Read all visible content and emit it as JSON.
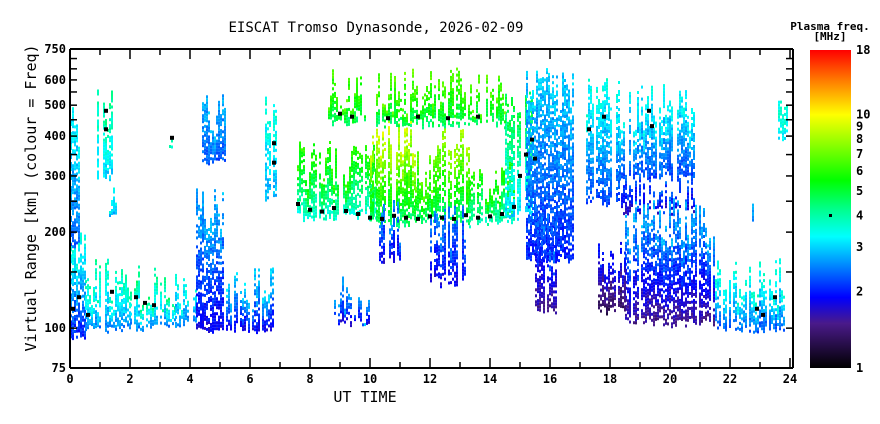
{
  "chart_data": {
    "type": "heatmap",
    "title": "EISCAT Tromso Dynasonde, 2026-02-09",
    "xlabel": "UT TIME",
    "ylabel": "Virtual Range [km] (colour = Freq)",
    "xlim": [
      0,
      24
    ],
    "ylim": [
      75,
      750
    ],
    "yscale": "log",
    "xticks": [
      "0",
      "2",
      "4",
      "6",
      "8",
      "10",
      "12",
      "14",
      "16",
      "18",
      "20",
      "22",
      "24"
    ],
    "yticks": [
      "75",
      "100",
      "200",
      "300",
      "400",
      "500",
      "600",
      "750"
    ],
    "colorbar": {
      "title_line1": "Plasma freq.",
      "title_line2": "[MHz]",
      "range": [
        1,
        18
      ],
      "scale": "log",
      "ticks": [
        "1",
        "2",
        "3",
        "4",
        "5",
        "6",
        "7",
        "8",
        "9",
        "10",
        "18"
      ],
      "stops": [
        {
          "f": 1.0,
          "color": "#000000"
        },
        {
          "f": 1.5,
          "color": "#4a1a8a"
        },
        {
          "f": 1.9,
          "color": "#0000ff"
        },
        {
          "f": 2.5,
          "color": "#0080ff"
        },
        {
          "f": 3.3,
          "color": "#00ffff"
        },
        {
          "f": 4.2,
          "color": "#00ff90"
        },
        {
          "f": 5.5,
          "color": "#00ff00"
        },
        {
          "f": 8.0,
          "color": "#a0ff00"
        },
        {
          "f": 10.0,
          "color": "#ffff00"
        },
        {
          "f": 13.5,
          "color": "#ff8000"
        },
        {
          "f": 18.0,
          "color": "#ff0000"
        }
      ]
    },
    "echo_regions": [
      {
        "t": [
          0,
          0.5
        ],
        "h": [
          95,
          180
        ],
        "f": [
          2,
          3.6
        ]
      },
      {
        "t": [
          0.5,
          2.0
        ],
        "h": [
          100,
          145
        ],
        "f": [
          2.5,
          4
        ]
      },
      {
        "t": [
          2,
          3.5
        ],
        "h": [
          102,
          135
        ],
        "f": [
          2.5,
          4.3
        ]
      },
      {
        "t": [
          3.5,
          4.2
        ],
        "h": [
          104,
          130
        ],
        "f": [
          2.5,
          3.5
        ]
      },
      {
        "t": [
          4.2,
          5.2
        ],
        "h": [
          100,
          245
        ],
        "f": [
          1.8,
          2.8
        ]
      },
      {
        "t": [
          5.2,
          6.8
        ],
        "h": [
          100,
          135
        ],
        "f": [
          1.8,
          3.1
        ]
      },
      {
        "t": [
          0,
          0.4
        ],
        "h": [
          180,
          420
        ],
        "f": [
          2.3,
          3.3
        ]
      },
      {
        "t": [
          0.9,
          1.4
        ],
        "h": [
          300,
          520
        ],
        "f": [
          3,
          4.2
        ]
      },
      {
        "t": [
          4.4,
          5.2
        ],
        "h": [
          330,
          480
        ],
        "f": [
          2.3,
          2.8
        ]
      },
      {
        "t": [
          6.5,
          6.9
        ],
        "h": [
          260,
          500
        ],
        "f": [
          2.8,
          3.6
        ]
      },
      {
        "t": [
          1.3,
          1.6
        ],
        "h": [
          225,
          242
        ],
        "f": [
          2.8,
          3.3
        ]
      },
      {
        "t": [
          3.3,
          3.5
        ],
        "h": [
          370,
          410
        ],
        "f": [
          3.3,
          3.8
        ]
      },
      {
        "t": [
          7.5,
          10.2
        ],
        "h": [
          225,
          330
        ],
        "f": [
          3.6,
          6
        ]
      },
      {
        "t": [
          10.0,
          11.5
        ],
        "h": [
          215,
          420
        ],
        "f": [
          4.5,
          9
        ]
      },
      {
        "t": [
          11.5,
          12.4
        ],
        "h": [
          215,
          320
        ],
        "f": [
          4.5,
          7
        ]
      },
      {
        "t": [
          12.4,
          13.3
        ],
        "h": [
          215,
          390
        ],
        "f": [
          4.5,
          8
        ]
      },
      {
        "t": [
          13.3,
          14.8
        ],
        "h": [
          215,
          300
        ],
        "f": [
          3.8,
          6
        ]
      },
      {
        "t": [
          14.5,
          15.4
        ],
        "h": [
          225,
          500
        ],
        "f": [
          3,
          5
        ]
      },
      {
        "t": [
          15.2,
          16.8
        ],
        "h": [
          165,
          560
        ],
        "f": [
          2,
          3
        ]
      },
      {
        "t": [
          8.6,
          9.8
        ],
        "h": [
          450,
          560
        ],
        "f": [
          4.5,
          6.5
        ]
      },
      {
        "t": [
          10.2,
          14.5
        ],
        "h": [
          440,
          560
        ],
        "f": [
          4.5,
          6.8
        ]
      },
      {
        "t": [
          10.3,
          11.0
        ],
        "h": [
          165,
          215
        ],
        "f": [
          1.8,
          2.6
        ]
      },
      {
        "t": [
          12.0,
          13.2
        ],
        "h": [
          140,
          215
        ],
        "f": [
          1.8,
          2.5
        ]
      },
      {
        "t": [
          15.5,
          16.2
        ],
        "h": [
          115,
          210
        ],
        "f": [
          1.5,
          2.5
        ]
      },
      {
        "t": [
          8.8,
          10.0
        ],
        "h": [
          105,
          125
        ],
        "f": [
          1.8,
          2.8
        ]
      },
      {
        "t": [
          17.2,
          18.3
        ],
        "h": [
          250,
          540
        ],
        "f": [
          2.2,
          3.5
        ]
      },
      {
        "t": [
          18.3,
          20.8
        ],
        "h": [
          300,
          500
        ],
        "f": [
          2.2,
          3.4
        ]
      },
      {
        "t": [
          18.3,
          20.8
        ],
        "h": [
          235,
          275
        ],
        "f": [
          1.7,
          2.3
        ]
      },
      {
        "t": [
          18.5,
          21.5
        ],
        "h": [
          105,
          220
        ],
        "f": [
          1.5,
          2.8
        ]
      },
      {
        "t": [
          17.6,
          18.5
        ],
        "h": [
          115,
          170
        ],
        "f": [
          1.3,
          2
        ]
      },
      {
        "t": [
          21.5,
          23.8
        ],
        "h": [
          100,
          145
        ],
        "f": [
          2.3,
          3.7
        ]
      },
      {
        "t": [
          23.6,
          23.9
        ],
        "h": [
          400,
          480
        ],
        "f": [
          3.3,
          3.6
        ]
      },
      {
        "t": [
          22.6,
          22.8
        ],
        "h": [
          215,
          230
        ],
        "f": [
          2.6,
          3
        ]
      }
    ],
    "critical_trace": [
      [
        0.1,
        115
      ],
      [
        0.3,
        125
      ],
      [
        0.6,
        110
      ],
      [
        1.2,
        480
      ],
      [
        1.2,
        420
      ],
      [
        1.4,
        130
      ],
      [
        2.2,
        125
      ],
      [
        2.5,
        120
      ],
      [
        2.8,
        118
      ],
      [
        3.4,
        395
      ],
      [
        6.8,
        380
      ],
      [
        6.8,
        330
      ],
      [
        7.6,
        245
      ],
      [
        8.0,
        235
      ],
      [
        8.4,
        232
      ],
      [
        8.8,
        238
      ],
      [
        9.2,
        233
      ],
      [
        9.6,
        228
      ],
      [
        10.0,
        222
      ],
      [
        10.4,
        220
      ],
      [
        10.8,
        225
      ],
      [
        11.2,
        222
      ],
      [
        11.6,
        220
      ],
      [
        12.0,
        224
      ],
      [
        12.4,
        222
      ],
      [
        12.8,
        220
      ],
      [
        13.2,
        226
      ],
      [
        13.6,
        222
      ],
      [
        14.0,
        224
      ],
      [
        14.4,
        228
      ],
      [
        14.8,
        240
      ],
      [
        15.0,
        300
      ],
      [
        15.2,
        350
      ],
      [
        15.4,
        390
      ],
      [
        15.5,
        340
      ],
      [
        9.0,
        470
      ],
      [
        9.4,
        460
      ],
      [
        10.6,
        455
      ],
      [
        11.6,
        460
      ],
      [
        12.6,
        455
      ],
      [
        13.6,
        460
      ],
      [
        17.3,
        420
      ],
      [
        17.8,
        460
      ],
      [
        19.3,
        480
      ],
      [
        19.4,
        430
      ],
      [
        22.9,
        115
      ],
      [
        23.1,
        110
      ],
      [
        23.5,
        125
      ]
    ]
  }
}
